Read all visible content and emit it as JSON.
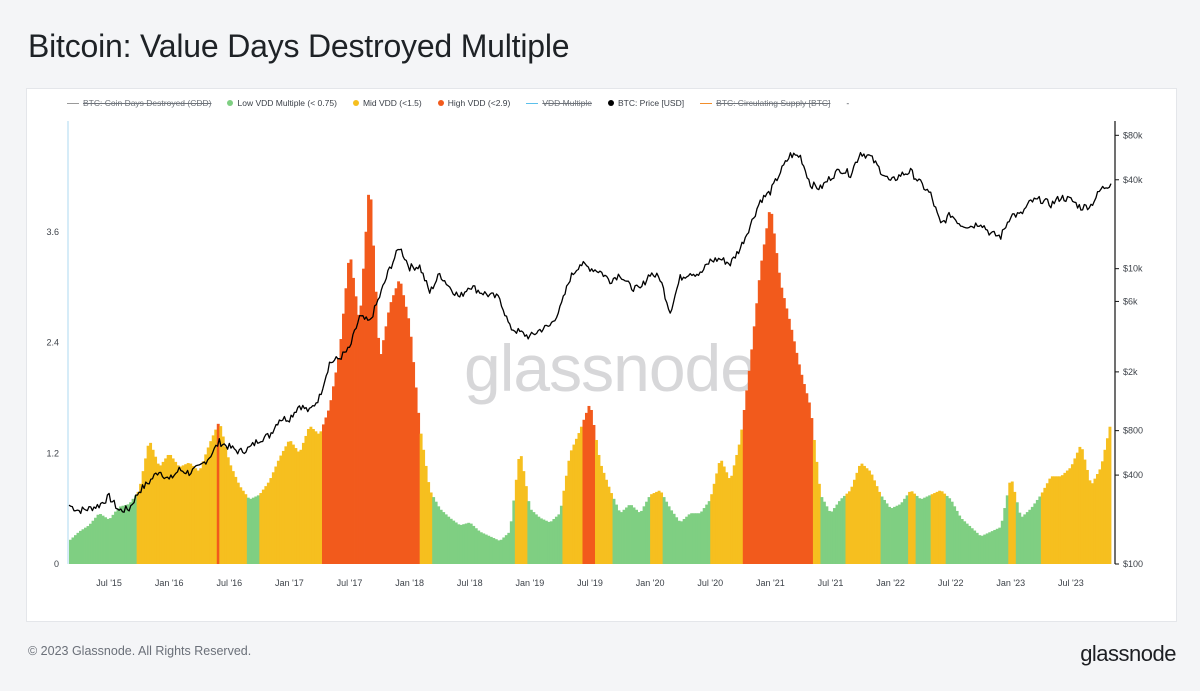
{
  "title": "Bitcoin: Value Days Destroyed Multiple",
  "footer": {
    "copyright": "© 2023 Glassnode. All Rights Reserved.",
    "logo": "glassnode"
  },
  "watermark": "glassnode",
  "legend": [
    {
      "label": "BTC: Coin Days Destroyed (CDD)",
      "color": "#9a9a9a",
      "marker": "line",
      "disabled": true
    },
    {
      "label": "Low VDD Multiple (< 0.75)",
      "color": "#7fcf82",
      "marker": "dot",
      "disabled": false
    },
    {
      "label": "Mid VDD (<1.5)",
      "color": "#f6bf1f",
      "marker": "dot",
      "disabled": false
    },
    {
      "label": "High VDD (<2.9)",
      "color": "#f25a1c",
      "marker": "dot",
      "disabled": false
    },
    {
      "label": "VDD Multiple",
      "color": "#5bc0eb",
      "marker": "line",
      "disabled": true
    },
    {
      "label": "BTC: Price [USD]",
      "color": "#000000",
      "marker": "dot",
      "disabled": false
    },
    {
      "label": "BTC: Circulating Supply [BTC]",
      "color": "#f28e2b",
      "marker": "line",
      "disabled": true
    },
    {
      "label": "-",
      "color": "",
      "marker": "none",
      "disabled": false
    }
  ],
  "chart_data": {
    "type": "area",
    "x_ticks": [
      "Jul '15",
      "Jan '16",
      "Jul '16",
      "Jan '17",
      "Jul '17",
      "Jan '18",
      "Jul '18",
      "Jan '19",
      "Jul '19",
      "Jan '20",
      "Jul '20",
      "Jan '21",
      "Jul '21",
      "Jan '22",
      "Jul '22",
      "Jan '23",
      "Jul '23"
    ],
    "x_range": [
      "2015-03",
      "2023-11"
    ],
    "y_left": {
      "ticks": [
        0,
        1.2,
        2.4,
        3.6
      ],
      "tick_labels": [
        "0",
        "1.2",
        "2.4",
        "3.6"
      ],
      "range": [
        0,
        4.8
      ]
    },
    "y_right": {
      "scale": "log",
      "ticks": [
        100,
        400,
        800,
        2000,
        6000,
        10000,
        40000,
        80000
      ],
      "tick_labels": [
        "$100",
        "$400",
        "$800",
        "$2k",
        "$6k",
        "$10k",
        "$40k",
        "$80k"
      ],
      "range": [
        100,
        100000
      ]
    },
    "colors": {
      "low": "#7fcf82",
      "mid": "#f6bf1f",
      "high": "#f25a1c",
      "price": "#000000"
    },
    "thresholds": {
      "low": 0.75,
      "mid": 1.5
    },
    "vdd_multiple": {
      "name": "VDD Multiple",
      "points": [
        [
          "2015-03",
          0.25
        ],
        [
          "2015-04",
          0.35
        ],
        [
          "2015-05",
          0.42
        ],
        [
          "2015-06",
          0.55
        ],
        [
          "2015-07",
          0.48
        ],
        [
          "2015-08",
          0.62
        ],
        [
          "2015-09",
          0.65
        ],
        [
          "2015-10",
          0.8
        ],
        [
          "2015-11",
          1.35
        ],
        [
          "2015-12",
          1.05
        ],
        [
          "2016-01",
          1.2
        ],
        [
          "2016-02",
          1.05
        ],
        [
          "2016-03",
          1.1
        ],
        [
          "2016-04",
          1.0
        ],
        [
          "2016-05",
          1.3
        ],
        [
          "2016-06",
          1.55
        ],
        [
          "2016-07",
          1.1
        ],
        [
          "2016-08",
          0.85
        ],
        [
          "2016-09",
          0.7
        ],
        [
          "2016-10",
          0.75
        ],
        [
          "2016-11",
          0.9
        ],
        [
          "2016-12",
          1.15
        ],
        [
          "2017-01",
          1.35
        ],
        [
          "2017-02",
          1.2
        ],
        [
          "2017-03",
          1.5
        ],
        [
          "2017-04",
          1.4
        ],
        [
          "2017-05",
          1.7
        ],
        [
          "2017-06",
          2.3
        ],
        [
          "2017-07",
          3.4
        ],
        [
          "2017-08",
          2.6
        ],
        [
          "2017-09",
          4.2
        ],
        [
          "2017-10",
          2.2
        ],
        [
          "2017-11",
          2.8
        ],
        [
          "2017-12",
          3.1
        ],
        [
          "2018-01",
          2.6
        ],
        [
          "2018-02",
          1.5
        ],
        [
          "2018-03",
          0.8
        ],
        [
          "2018-04",
          0.6
        ],
        [
          "2018-05",
          0.5
        ],
        [
          "2018-06",
          0.42
        ],
        [
          "2018-07",
          0.45
        ],
        [
          "2018-08",
          0.35
        ],
        [
          "2018-09",
          0.3
        ],
        [
          "2018-10",
          0.25
        ],
        [
          "2018-11",
          0.35
        ],
        [
          "2018-12",
          1.25
        ],
        [
          "2019-01",
          0.6
        ],
        [
          "2019-02",
          0.5
        ],
        [
          "2019-03",
          0.45
        ],
        [
          "2019-04",
          0.55
        ],
        [
          "2019-05",
          1.2
        ],
        [
          "2019-06",
          1.45
        ],
        [
          "2019-07",
          1.75
        ],
        [
          "2019-08",
          1.1
        ],
        [
          "2019-09",
          0.8
        ],
        [
          "2019-10",
          0.55
        ],
        [
          "2019-11",
          0.65
        ],
        [
          "2019-12",
          0.55
        ],
        [
          "2020-01",
          0.75
        ],
        [
          "2020-02",
          0.8
        ],
        [
          "2020-03",
          0.6
        ],
        [
          "2020-04",
          0.45
        ],
        [
          "2020-05",
          0.55
        ],
        [
          "2020-06",
          0.55
        ],
        [
          "2020-07",
          0.7
        ],
        [
          "2020-08",
          1.15
        ],
        [
          "2020-09",
          0.9
        ],
        [
          "2020-10",
          1.35
        ],
        [
          "2020-11",
          2.2
        ],
        [
          "2020-12",
          3.2
        ],
        [
          "2021-01",
          3.9
        ],
        [
          "2021-02",
          3.05
        ],
        [
          "2021-03",
          2.6
        ],
        [
          "2021-04",
          2.1
        ],
        [
          "2021-05",
          1.7
        ],
        [
          "2021-06",
          0.75
        ],
        [
          "2021-07",
          0.55
        ],
        [
          "2021-08",
          0.7
        ],
        [
          "2021-09",
          0.8
        ],
        [
          "2021-10",
          1.1
        ],
        [
          "2021-11",
          1.0
        ],
        [
          "2021-12",
          0.75
        ],
        [
          "2022-01",
          0.6
        ],
        [
          "2022-02",
          0.65
        ],
        [
          "2022-03",
          0.8
        ],
        [
          "2022-04",
          0.7
        ],
        [
          "2022-05",
          0.75
        ],
        [
          "2022-06",
          0.8
        ],
        [
          "2022-07",
          0.7
        ],
        [
          "2022-08",
          0.5
        ],
        [
          "2022-09",
          0.4
        ],
        [
          "2022-10",
          0.3
        ],
        [
          "2022-11",
          0.35
        ],
        [
          "2022-12",
          0.4
        ],
        [
          "2023-01",
          0.95
        ],
        [
          "2023-02",
          0.5
        ],
        [
          "2023-03",
          0.6
        ],
        [
          "2023-04",
          0.75
        ],
        [
          "2023-05",
          0.95
        ],
        [
          "2023-06",
          0.95
        ],
        [
          "2023-07",
          1.05
        ],
        [
          "2023-08",
          1.3
        ],
        [
          "2023-09",
          0.85
        ],
        [
          "2023-10",
          1.05
        ],
        [
          "2023-11",
          1.55
        ]
      ]
    },
    "price": {
      "name": "BTC: Price [USD]",
      "points": [
        [
          "2015-03",
          250
        ],
        [
          "2015-04",
          230
        ],
        [
          "2015-05",
          237
        ],
        [
          "2015-06",
          250
        ],
        [
          "2015-07",
          285
        ],
        [
          "2015-08",
          230
        ],
        [
          "2015-09",
          236
        ],
        [
          "2015-10",
          312
        ],
        [
          "2015-11",
          360
        ],
        [
          "2015-12",
          430
        ],
        [
          "2016-01",
          370
        ],
        [
          "2016-02",
          435
        ],
        [
          "2016-03",
          415
        ],
        [
          "2016-04",
          450
        ],
        [
          "2016-05",
          530
        ],
        [
          "2016-06",
          670
        ],
        [
          "2016-07",
          620
        ],
        [
          "2016-08",
          575
        ],
        [
          "2016-09",
          608
        ],
        [
          "2016-10",
          700
        ],
        [
          "2016-11",
          742
        ],
        [
          "2016-12",
          960
        ],
        [
          "2017-01",
          970
        ],
        [
          "2017-02",
          1190
        ],
        [
          "2017-03",
          1080
        ],
        [
          "2017-04",
          1350
        ],
        [
          "2017-05",
          2300
        ],
        [
          "2017-06",
          2480
        ],
        [
          "2017-07",
          2870
        ],
        [
          "2017-08",
          4700
        ],
        [
          "2017-09",
          4340
        ],
        [
          "2017-10",
          6470
        ],
        [
          "2017-11",
          10000
        ],
        [
          "2017-12",
          14000
        ],
        [
          "2018-01",
          10200
        ],
        [
          "2018-02",
          10400
        ],
        [
          "2018-03",
          6900
        ],
        [
          "2018-04",
          9200
        ],
        [
          "2018-05",
          7500
        ],
        [
          "2018-06",
          6400
        ],
        [
          "2018-07",
          7700
        ],
        [
          "2018-08",
          7000
        ],
        [
          "2018-09",
          6600
        ],
        [
          "2018-10",
          6300
        ],
        [
          "2018-11",
          4000
        ],
        [
          "2018-12",
          3700
        ],
        [
          "2019-01",
          3450
        ],
        [
          "2019-02",
          3850
        ],
        [
          "2019-03",
          4100
        ],
        [
          "2019-04",
          5300
        ],
        [
          "2019-05",
          8600
        ],
        [
          "2019-06",
          10800
        ],
        [
          "2019-07",
          10100
        ],
        [
          "2019-08",
          9600
        ],
        [
          "2019-09",
          8300
        ],
        [
          "2019-10",
          9200
        ],
        [
          "2019-11",
          7550
        ],
        [
          "2019-12",
          7200
        ],
        [
          "2020-01",
          9350
        ],
        [
          "2020-02",
          8600
        ],
        [
          "2020-03",
          5100
        ],
        [
          "2020-04",
          8650
        ],
        [
          "2020-05",
          9450
        ],
        [
          "2020-06",
          9150
        ],
        [
          "2020-07",
          11300
        ],
        [
          "2020-08",
          11650
        ],
        [
          "2020-09",
          10800
        ],
        [
          "2020-10",
          13800
        ],
        [
          "2020-11",
          19700
        ],
        [
          "2020-12",
          29000
        ],
        [
          "2021-01",
          33100
        ],
        [
          "2021-02",
          45200
        ],
        [
          "2021-03",
          58900
        ],
        [
          "2021-04",
          57700
        ],
        [
          "2021-05",
          37300
        ],
        [
          "2021-06",
          35000
        ],
        [
          "2021-07",
          41500
        ],
        [
          "2021-08",
          47100
        ],
        [
          "2021-09",
          43800
        ],
        [
          "2021-10",
          61300
        ],
        [
          "2021-11",
          57000
        ],
        [
          "2021-12",
          46300
        ],
        [
          "2022-01",
          38500
        ],
        [
          "2022-02",
          43200
        ],
        [
          "2022-03",
          45500
        ],
        [
          "2022-04",
          37700
        ],
        [
          "2022-05",
          31800
        ],
        [
          "2022-06",
          19900
        ],
        [
          "2022-07",
          23300
        ],
        [
          "2022-08",
          20000
        ],
        [
          "2022-09",
          19400
        ],
        [
          "2022-10",
          20500
        ],
        [
          "2022-11",
          17200
        ],
        [
          "2022-12",
          16500
        ],
        [
          "2023-01",
          23100
        ],
        [
          "2023-02",
          23150
        ],
        [
          "2023-03",
          28500
        ],
        [
          "2023-04",
          29300
        ],
        [
          "2023-05",
          27200
        ],
        [
          "2023-06",
          30500
        ],
        [
          "2023-07",
          29200
        ],
        [
          "2023-08",
          25900
        ],
        [
          "2023-09",
          26900
        ],
        [
          "2023-10",
          34500
        ],
        [
          "2023-11",
          37700
        ]
      ]
    }
  }
}
